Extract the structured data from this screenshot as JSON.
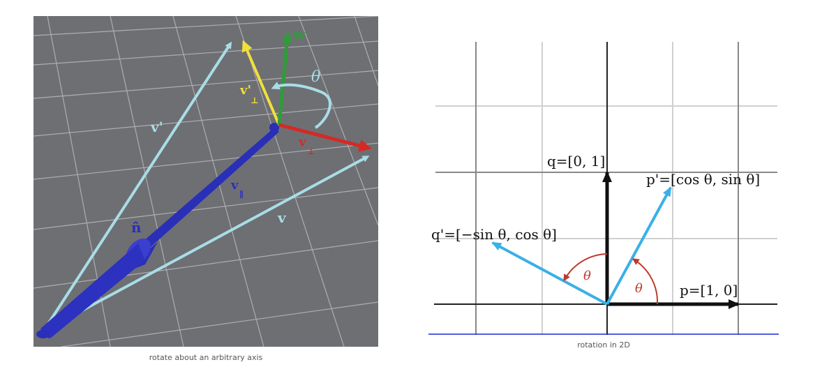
{
  "left_figure": {
    "caption": "rotate about an arbitrary axis",
    "labels": {
      "w": "w",
      "theta": "θ",
      "v_prime_perp": "v'",
      "v_prime_perp_sub": "⊥",
      "v_perp": "v",
      "v_perp_sub": "⊥",
      "v_prime": "v'",
      "v_parallel": "v",
      "v_parallel_sub": "∥",
      "n_hat": "n̂",
      "v": "v"
    },
    "colors": {
      "background": "#6e6f73",
      "grid": "#b9b9bc",
      "v_vectors": "#a8dde6",
      "axis_n": "#2a2fb8",
      "perp_prime": "#f1e03a",
      "w": "#2f9b3a",
      "perp": "#d42a24",
      "theta_arc": "#a8dde6"
    }
  },
  "right_figure": {
    "caption": "rotation in 2D",
    "labels": {
      "q": "q=[0, 1]",
      "p_prime": "p'=[cos θ, sin θ]",
      "q_prime": "q'=[−sin θ, cos θ]",
      "p": "p=[1, 0]",
      "theta_1": "θ",
      "theta_2": "θ"
    },
    "colors": {
      "rotated_vectors": "#3ab0e6",
      "axes": "#111111",
      "angle_arc": "#c0392b",
      "grid_dark": "#777777",
      "grid_light": "#d0d0d0",
      "baseline": "#1a2bd1"
    }
  }
}
